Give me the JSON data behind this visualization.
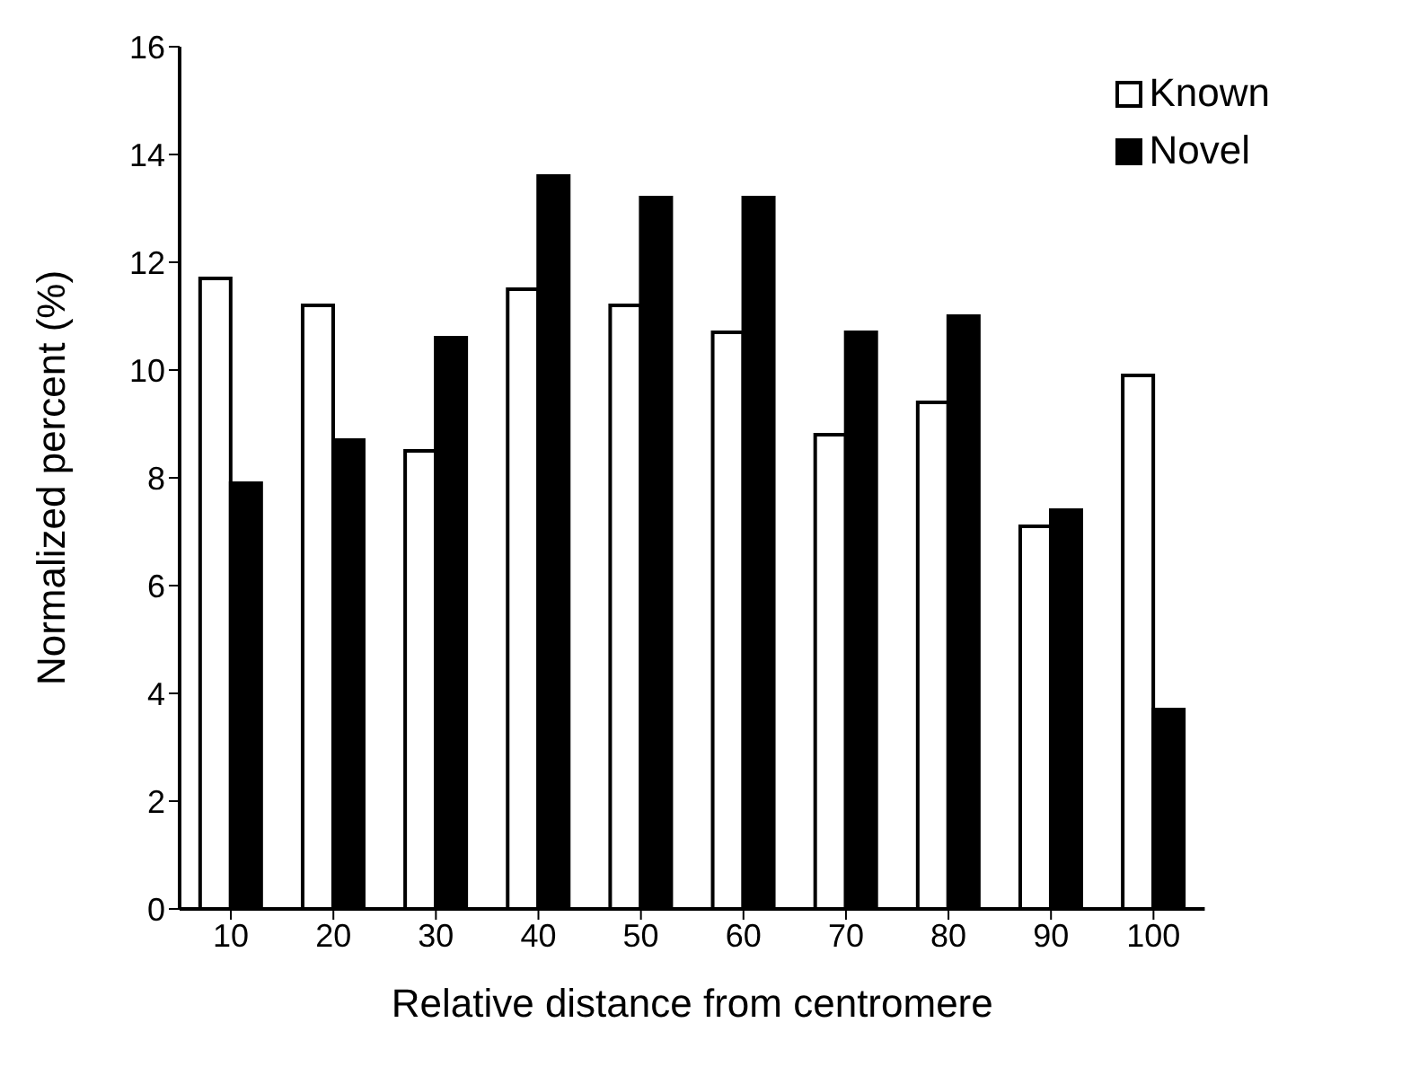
{
  "chart_data": {
    "type": "bar",
    "xlabel": "Relative distance from centromere",
    "ylabel": "Normalized percent (%)",
    "categories": [
      "10",
      "20",
      "30",
      "40",
      "50",
      "60",
      "70",
      "80",
      "90",
      "100"
    ],
    "series": [
      {
        "name": "Known",
        "color": "#ffffff",
        "values": [
          11.7,
          11.2,
          8.5,
          11.5,
          11.2,
          10.7,
          8.8,
          9.4,
          7.1,
          9.9
        ]
      },
      {
        "name": "Novel",
        "color": "#000000",
        "values": [
          7.9,
          8.7,
          10.6,
          13.6,
          13.2,
          13.2,
          10.7,
          11.0,
          7.4,
          3.7
        ]
      }
    ],
    "ylim": [
      0,
      16
    ],
    "yticks": [
      0,
      2,
      4,
      6,
      8,
      10,
      12,
      14,
      16
    ],
    "grid": false,
    "legend": "top right"
  }
}
